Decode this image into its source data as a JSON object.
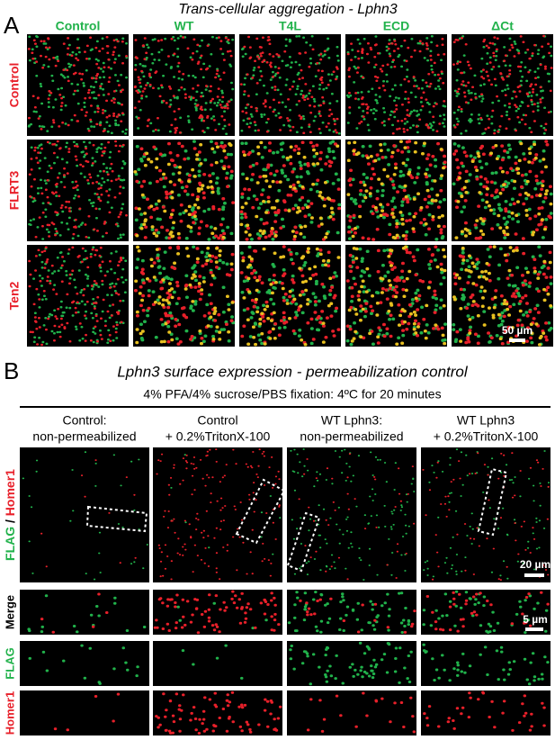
{
  "panel_a": {
    "label": "A",
    "title": "Trans-cellular aggregation - Lphn3",
    "columns": [
      "Control",
      "WT",
      "T4L",
      "ECD",
      "ΔCt"
    ],
    "rows": [
      "Control",
      "FLRT3",
      "Ten2"
    ],
    "scale_bar": "50 µm"
  },
  "panel_b": {
    "label": "B",
    "title": "Lphn3 surface expression - permeabilization control",
    "subtitle": "4% PFA/4% sucrose/PBS fixation: 4ºC for 20 minutes",
    "columns": [
      [
        "Control:",
        "non-permeabilized"
      ],
      [
        "Control",
        "+ 0.2%TritonX-100"
      ],
      [
        "WT Lphn3:",
        "non-permeabilized"
      ],
      [
        "WT Lphn3",
        "+ 0.2%TritonX-100"
      ]
    ],
    "main_row_label": {
      "flag": "FLAG",
      "separator": "/",
      "homer1": "Homer1"
    },
    "rows": [
      "Merge",
      "FLAG",
      "Homer1"
    ],
    "scale_bar_main": "20 µm",
    "scale_bar_zoom": "5 µm"
  }
}
